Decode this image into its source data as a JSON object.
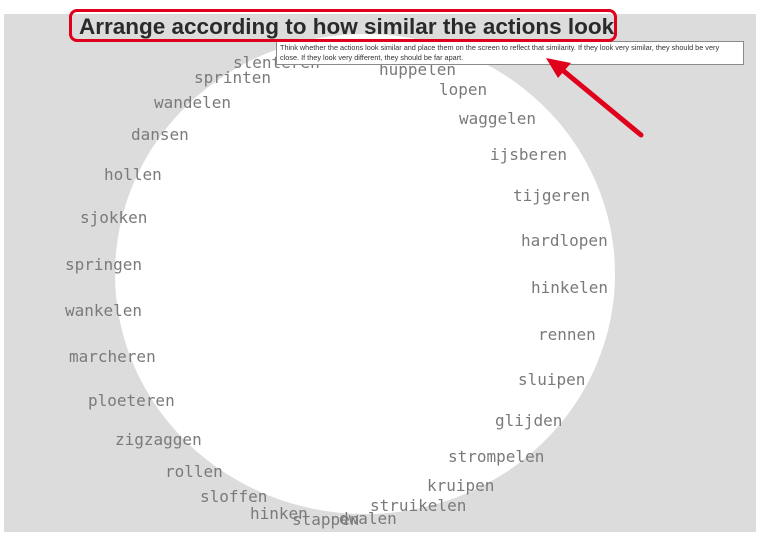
{
  "title": "Arrange according to how similar the actions look",
  "tooltip": "Think whether the actions look similar and place them on the screen to reflect that similarity. If they look very similar, they should be very close. If they look very different, they should be far apart.",
  "words": [
    "slenteren",
    "sprinten",
    "wandelen",
    "dansen",
    "hollen",
    "sjokken",
    "springen",
    "wankelen",
    "marcheren",
    "ploeteren",
    "zigzaggen",
    "rollen",
    "sloffen",
    "hinken",
    "stappen",
    "dwalen",
    "struikelen",
    "kruipen",
    "strompelen",
    "glijden",
    "sluipen",
    "rennen",
    "hinkelen",
    "hardlopen",
    "tijgeren",
    "ijsberen",
    "waggelen",
    "lopen",
    "huppelen"
  ],
  "colors": {
    "highlight": "#e0001b",
    "arena": "#dcdcdc",
    "word": "#7a7a7a"
  }
}
